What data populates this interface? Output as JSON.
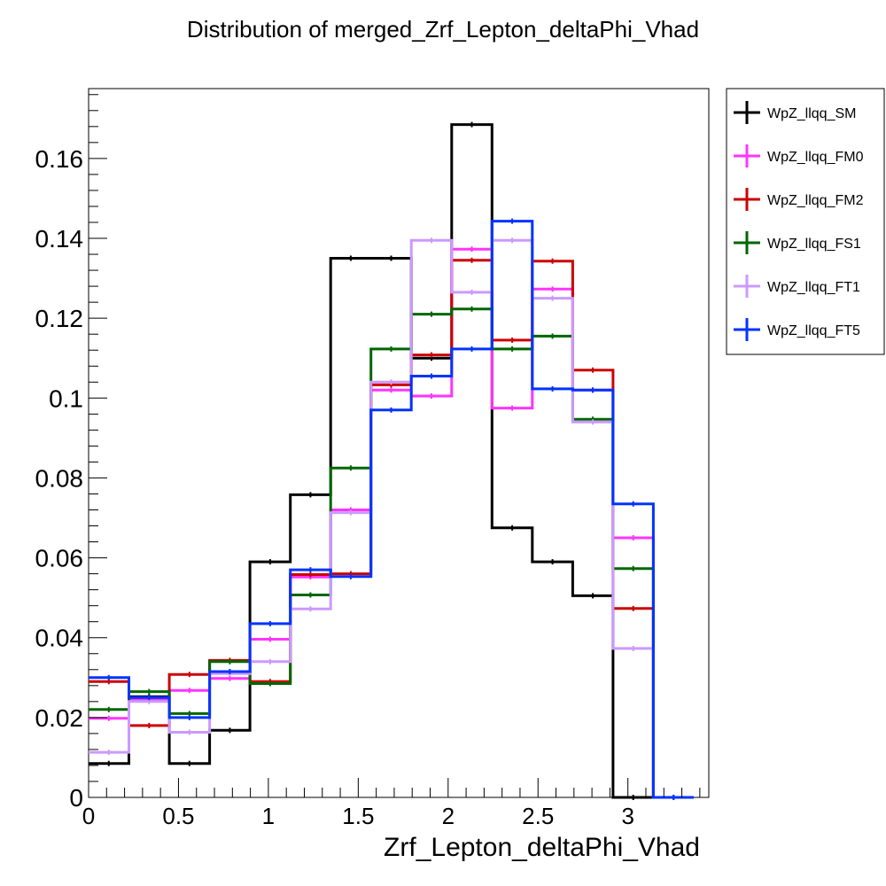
{
  "chart_data": {
    "type": "line",
    "style": "step-histogram",
    "title": "Distribution of merged_Zrf_Lepton_deltaPhi_Vhad",
    "xlabel": "Zrf_Lepton_deltaPhi_Vhad",
    "ylabel": "",
    "xlim": [
      0,
      3.45
    ],
    "ylim": [
      0,
      0.1775
    ],
    "x_ticks": [
      0,
      0.5,
      1,
      1.5,
      2,
      2.5,
      3
    ],
    "x_tick_labels": [
      "0",
      "0.5",
      "1",
      "1.5",
      "2",
      "2.5",
      "3"
    ],
    "y_ticks": [
      0,
      0.02,
      0.04,
      0.06,
      0.08,
      0.1,
      0.12,
      0.14,
      0.16
    ],
    "y_tick_labels": [
      "0",
      "0.02",
      "0.04",
      "0.06",
      "0.08",
      "0.1",
      "0.12",
      "0.14",
      "0.16"
    ],
    "grid": false,
    "legend_position": "top-right",
    "bin_edges": [
      0,
      0.2244,
      0.4488,
      0.6732,
      0.8976,
      1.122,
      1.3464,
      1.5708,
      1.7952,
      2.0196,
      2.244,
      2.4684,
      2.6928,
      2.9172,
      3.1416,
      3.366
    ],
    "series": [
      {
        "name": "WpZ_llqq_SM",
        "color": "#000000",
        "values": [
          0.0085,
          0.0252,
          0.0085,
          0.0168,
          0.059,
          0.0758,
          0.135,
          0.135,
          0.11,
          0.1685,
          0.0675,
          0.059,
          0.0505,
          0.0,
          0.0
        ]
      },
      {
        "name": "WpZ_llqq_FM0",
        "color": "#ff33ff",
        "values": [
          0.0198,
          0.0245,
          0.0268,
          0.0298,
          0.0396,
          0.0552,
          0.072,
          0.102,
          0.1005,
          0.1373,
          0.0975,
          0.1273,
          0.102,
          0.065,
          0.0
        ]
      },
      {
        "name": "WpZ_llqq_FM2",
        "color": "#cc0000",
        "values": [
          0.029,
          0.018,
          0.0308,
          0.0343,
          0.029,
          0.0558,
          0.056,
          0.1033,
          0.1108,
          0.1345,
          0.1145,
          0.1343,
          0.107,
          0.0473,
          0.0
        ]
      },
      {
        "name": "WpZ_llqq_FS1",
        "color": "#006600",
        "values": [
          0.022,
          0.0265,
          0.021,
          0.034,
          0.0285,
          0.0507,
          0.0825,
          0.1123,
          0.121,
          0.1223,
          0.1123,
          0.1155,
          0.0947,
          0.0573,
          0.0
        ]
      },
      {
        "name": "WpZ_llqq_FT1",
        "color": "#cc99ff",
        "values": [
          0.0113,
          0.024,
          0.0163,
          0.031,
          0.034,
          0.0472,
          0.0713,
          0.104,
          0.1395,
          0.1265,
          0.1395,
          0.125,
          0.094,
          0.0373,
          0.0
        ]
      },
      {
        "name": "WpZ_llqq_FT5",
        "color": "#0033ff",
        "values": [
          0.03,
          0.025,
          0.02,
          0.0315,
          0.0435,
          0.057,
          0.0553,
          0.097,
          0.1055,
          0.1123,
          0.1443,
          0.1023,
          0.102,
          0.0735,
          0.0
        ]
      }
    ]
  }
}
